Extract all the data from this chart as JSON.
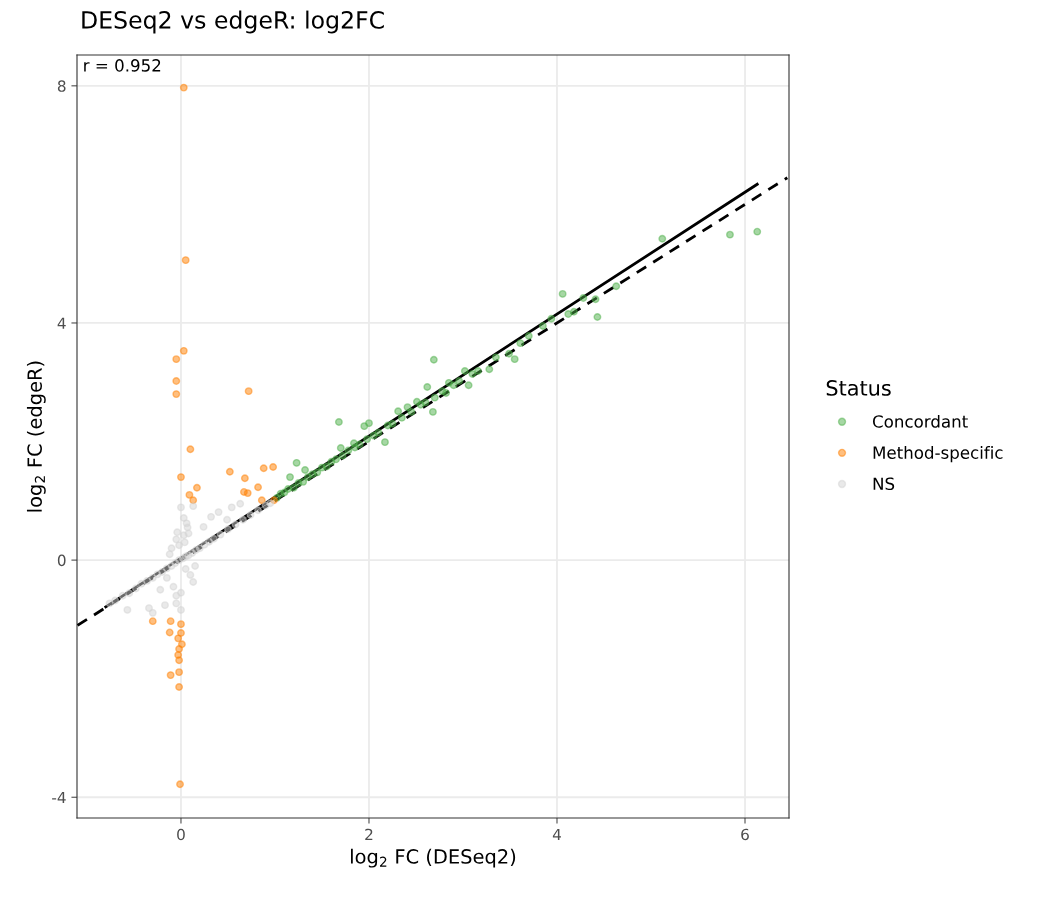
{
  "chart_data": {
    "type": "scatter",
    "title": "DESeq2 vs edgeR: log2FC",
    "xlabel": "log$_{2}$ FC (DESeq2)",
    "ylabel": "log$_{2}$ FC (edgeR)",
    "legend_title": "Status",
    "annotations": [
      "r = 0.952"
    ],
    "xlim": [
      -1.106,
      6.468
    ],
    "ylim": [
      -4.35,
      8.52
    ],
    "xticks": [
      0,
      2,
      4,
      6
    ],
    "yticks": [
      -4,
      0,
      4,
      8
    ],
    "grid": true,
    "legend": "right",
    "marker": "circle",
    "series": [
      {
        "name": "Concordant",
        "color": "#4daf4a",
        "x": [
          5.12,
          5.84,
          6.13,
          4.06,
          4.28,
          4.41,
          4.63,
          4.18,
          4.12,
          4.43,
          3.94,
          3.61,
          3.49,
          3.55,
          2.69,
          3.28,
          3.16,
          3.02,
          3.06,
          2.85,
          2.82,
          2.62,
          2.68,
          2.51,
          2.41,
          2.31,
          2.17,
          1.68,
          1.95,
          2.0,
          1.84,
          1.7,
          1.23,
          1.32,
          1.16,
          1.02,
          1.06,
          1.1,
          1.14,
          1.2,
          1.25,
          1.3,
          1.35,
          1.4,
          1.45,
          1.5,
          1.55,
          1.6,
          1.65,
          1.72,
          1.78,
          1.85,
          1.9,
          1.98,
          2.05,
          2.1,
          2.2,
          2.25,
          2.35,
          2.45,
          2.55,
          2.6,
          2.7,
          2.78,
          2.9,
          2.96,
          3.1,
          3.35,
          3.7,
          3.85
        ],
        "values": [
          5.42,
          5.49,
          5.54,
          4.49,
          4.42,
          4.4,
          4.62,
          4.19,
          4.15,
          4.1,
          4.07,
          3.66,
          3.48,
          3.39,
          3.38,
          3.22,
          3.19,
          3.19,
          2.95,
          2.99,
          2.82,
          2.92,
          2.5,
          2.67,
          2.58,
          2.51,
          1.99,
          2.33,
          2.26,
          2.31,
          1.97,
          1.89,
          1.64,
          1.52,
          1.4,
          1.05,
          1.12,
          1.14,
          1.2,
          1.22,
          1.3,
          1.32,
          1.4,
          1.45,
          1.48,
          1.56,
          1.58,
          1.66,
          1.7,
          1.76,
          1.85,
          1.9,
          1.95,
          2.04,
          2.1,
          2.15,
          2.27,
          2.3,
          2.4,
          2.5,
          2.62,
          2.66,
          2.74,
          2.85,
          2.95,
          3.02,
          3.14,
          3.42,
          3.78,
          3.95
        ]
      },
      {
        "name": "Method-specific",
        "color": "#ff7f00",
        "x": [
          0.03,
          0.05,
          0.03,
          -0.05,
          -0.05,
          -0.05,
          0.72,
          0.1,
          0.0,
          0.52,
          0.68,
          0.88,
          0.98,
          0.82,
          0.67,
          0.71,
          0.86,
          0.99,
          0.17,
          0.09,
          0.13,
          -0.3,
          -0.11,
          0.0,
          -0.12,
          0.0,
          -0.03,
          0.01,
          -0.02,
          -0.03,
          -0.02,
          -0.11,
          -0.02,
          -0.02,
          -0.01
        ],
        "values": [
          7.97,
          5.06,
          3.53,
          3.39,
          3.02,
          2.8,
          2.85,
          1.87,
          1.4,
          1.49,
          1.38,
          1.55,
          1.57,
          1.23,
          1.15,
          1.13,
          1.01,
          1.01,
          1.22,
          1.1,
          1.01,
          -1.03,
          -1.03,
          -1.08,
          -1.22,
          -1.23,
          -1.32,
          -1.42,
          -1.5,
          -1.6,
          -1.69,
          -1.94,
          -1.89,
          -2.14,
          -3.78
        ]
      },
      {
        "name": "NS",
        "color": "#d3d3d3",
        "x": [
          -0.76,
          -0.57,
          -0.34,
          -0.3,
          -0.17,
          -0.05,
          0.0,
          0.13,
          0.0,
          0.13,
          0.03,
          0.32,
          0.4,
          0.54,
          0.63,
          0.24,
          0.06,
          -0.04,
          0.49,
          -0.7,
          -0.62,
          -0.55,
          -0.48,
          -0.42,
          -0.36,
          -0.3,
          -0.25,
          -0.2,
          -0.15,
          -0.1,
          -0.06,
          -0.02,
          0.02,
          0.05,
          0.08,
          0.12,
          0.16,
          0.2,
          0.25,
          0.3,
          0.35,
          0.42,
          0.5,
          0.58,
          0.66,
          0.74,
          0.82,
          0.9,
          0.95,
          -0.1,
          -0.05,
          0.03,
          0.07,
          -0.15,
          -0.08,
          0.1,
          0.0,
          -0.02,
          0.05,
          -0.22,
          -0.12,
          0.04,
          0.15,
          -0.05,
          0.08
        ],
        "values": [
          -0.73,
          -0.84,
          -0.81,
          -0.89,
          -0.76,
          -0.73,
          -0.84,
          -0.37,
          0.89,
          0.91,
          0.71,
          0.73,
          0.81,
          0.89,
          0.95,
          0.56,
          0.62,
          0.47,
          0.68,
          -0.68,
          -0.6,
          -0.56,
          -0.48,
          -0.4,
          -0.35,
          -0.3,
          -0.24,
          -0.2,
          -0.14,
          -0.1,
          -0.05,
          0.0,
          0.03,
          0.06,
          0.08,
          0.12,
          0.17,
          0.2,
          0.26,
          0.31,
          0.36,
          0.43,
          0.52,
          0.6,
          0.68,
          0.76,
          0.84,
          0.92,
          0.96,
          0.2,
          0.35,
          0.42,
          0.55,
          -0.3,
          -0.45,
          -0.25,
          -0.55,
          0.25,
          -0.15,
          -0.5,
          0.1,
          0.3,
          -0.1,
          -0.6,
          0.45
        ]
      },
      {
        "type": "line",
        "marker": "none",
        "line_style": "solid",
        "color": "#000000",
        "x": [
          -0.8,
          6.13
        ],
        "values": [
          -0.79,
          6.34
        ]
      },
      {
        "type": "line",
        "marker": "none",
        "line_style": "dashed",
        "color": "#000000",
        "x": [
          -1.1,
          6.45
        ],
        "values": [
          -1.1,
          6.45
        ]
      }
    ]
  }
}
